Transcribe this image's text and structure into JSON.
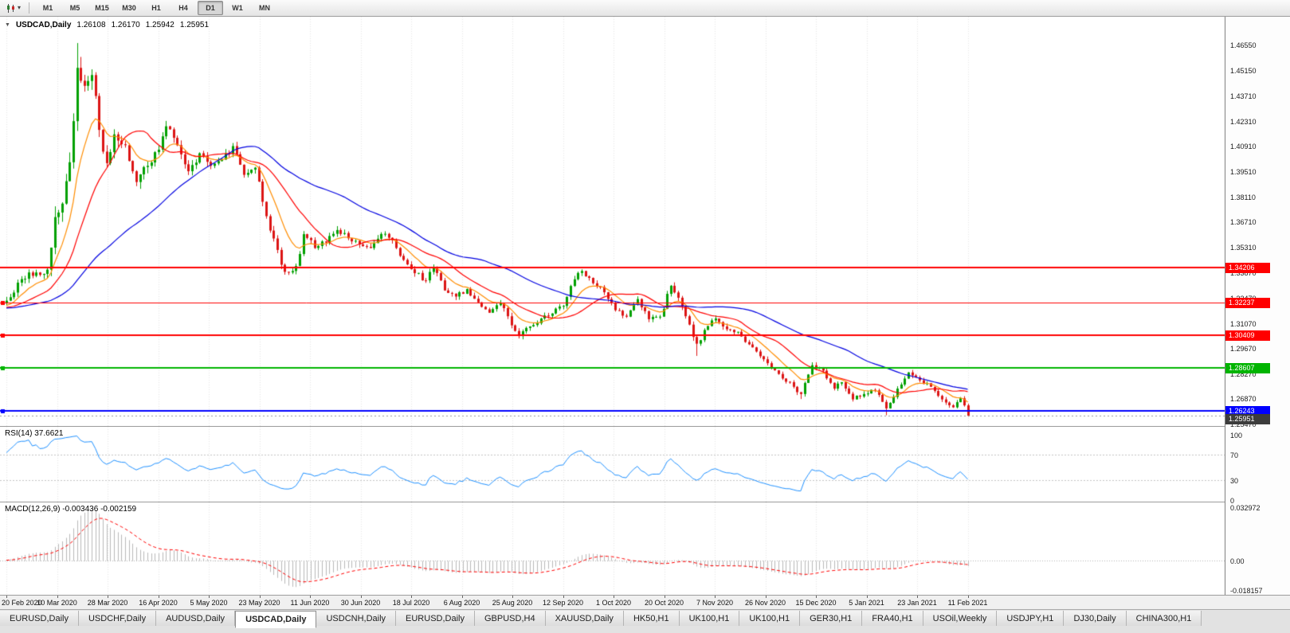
{
  "icons": {
    "collapse": "▼",
    "caret": "▾"
  },
  "toolbar": {
    "timeframes": [
      "M1",
      "M5",
      "M15",
      "M30",
      "H1",
      "H4",
      "D1",
      "W1",
      "MN"
    ],
    "active_timeframe": "D1"
  },
  "chart": {
    "symbol_header": "USDCAD,Daily",
    "ohlc": {
      "open": "1.26108",
      "high": "1.26170",
      "low": "1.25942",
      "close": "1.25951"
    }
  },
  "rsi": {
    "label": "RSI(14) 37.6621",
    "period": 14,
    "current": 37.6621,
    "color": "#1E90FF",
    "ticks": [
      {
        "label": "100",
        "v": 100
      },
      {
        "label": "70",
        "v": 70
      },
      {
        "label": "30",
        "v": 30
      },
      {
        "label": "0",
        "v": 0
      }
    ],
    "levels": [
      70,
      30
    ]
  },
  "macd": {
    "label": "MACD(12,26,9) -0.003436 -0.002159",
    "fast": 12,
    "slow": 26,
    "signal": 9,
    "values": [
      -0.003436,
      -0.002159
    ],
    "axis_max": 0.032972,
    "axis_min": -0.018157,
    "histogram_color": "#B8B8B8",
    "signal_color": "#FF0000",
    "ticks": [
      {
        "label": "0.032972",
        "v": 0.032972
      },
      {
        "label": "0.00",
        "v": 0
      },
      {
        "label": "-0.018157",
        "v": -0.018157
      }
    ]
  },
  "tabs": {
    "active_index": 3,
    "items": [
      "EURUSD,Daily",
      "USDCHF,Daily",
      "AUDUSD,Daily",
      "USDCAD,Daily",
      "USDCNH,Daily",
      "EURUSD,Daily",
      "GBPUSD,H4",
      "XAUUSD,Daily",
      "HK50,H1",
      "UK100,H1",
      "UK100,H1",
      "GER30,H1",
      "FRA40,H1",
      "USOil,Weekly",
      "USDJPY,H1",
      "DJ30,Daily",
      "CHINA300,H1"
    ]
  },
  "chart_data": {
    "type": "candlestick",
    "symbol": "USDCAD",
    "timeframe": "Daily",
    "bars": 260,
    "encoding": "anchors = [barIndex, estimatedClose, estimatedVolatility] keyframes read off the chart; bars between anchors are interpolated for rendering",
    "price_axis": {
      "max": 1.4655,
      "min": 1.2547
    },
    "price_ticks": [
      "1.46550",
      "1.45150",
      "1.43710",
      "1.42310",
      "1.40910",
      "1.39510",
      "1.38110",
      "1.36710",
      "1.35310",
      "1.33870",
      "1.32470",
      "1.31070",
      "1.29670",
      "1.28270",
      "1.26870",
      "1.25470"
    ],
    "date_ticks": [
      "20 Feb 2020",
      "10 Mar 2020",
      "28 Mar 2020",
      "16 Apr 2020",
      "5 May 2020",
      "23 May 2020",
      "11 Jun 2020",
      "30 Jun 2020",
      "18 Jul 2020",
      "6 Aug 2020",
      "25 Aug 2020",
      "12 Sep 2020",
      "1 Oct 2020",
      "20 Oct 2020",
      "7 Nov 2020",
      "26 Nov 2020",
      "15 Dec 2020",
      "5 Jan 2021",
      "23 Jan 2021",
      "11 Feb 2021"
    ],
    "colors": {
      "bull": "#00A000",
      "bear": "#DC1414",
      "background": "#FFFFFF",
      "grid": "#E6E6E6"
    },
    "levels": [
      {
        "label": "1.34206",
        "price": 1.34206,
        "color": "#FF0000",
        "width": 2,
        "handle": false
      },
      {
        "label": "1.32237",
        "price": 1.32237,
        "color": "#FF0000",
        "width": 1,
        "handle": true
      },
      {
        "label": "1.30409",
        "price": 1.30409,
        "color": "#FF0000",
        "width": 2,
        "handle": true
      },
      {
        "label": "1.28607",
        "price": 1.28607,
        "color": "#00B400",
        "width": 2,
        "handle": true
      },
      {
        "label": "1.26243",
        "price": 1.26243,
        "color": "#0000FF",
        "width": 2,
        "handle": true
      }
    ],
    "current_price": {
      "label": "1.25951",
      "price": 1.25951,
      "color": "#3C3C3C"
    },
    "moving_averages": [
      {
        "type": "ema",
        "period": 10,
        "color": "#FF8C00"
      },
      {
        "type": "sma",
        "period": 20,
        "color": "#FF0000"
      },
      {
        "type": "sma",
        "period": 50,
        "color": "#0000E0"
      }
    ],
    "anchors": [
      [
        0,
        1.3235,
        0.004
      ],
      [
        4,
        1.3355,
        0.0045
      ],
      [
        8,
        1.3392,
        0.005
      ],
      [
        11,
        1.3408,
        0.006
      ],
      [
        13,
        1.37,
        0.0095
      ],
      [
        15,
        1.3775,
        0.0105
      ],
      [
        17,
        1.4005,
        0.0115
      ],
      [
        19,
        1.453,
        0.013
      ],
      [
        21,
        1.443,
        0.012
      ],
      [
        23,
        1.449,
        0.011
      ],
      [
        25,
        1.4185,
        0.01
      ],
      [
        27,
        1.4,
        0.009
      ],
      [
        29,
        1.416,
        0.0085
      ],
      [
        32,
        1.41,
        0.008
      ],
      [
        35,
        1.3895,
        0.0075
      ],
      [
        38,
        1.3985,
        0.007
      ],
      [
        41,
        1.4075,
        0.0065
      ],
      [
        43,
        1.4205,
        0.0065
      ],
      [
        46,
        1.41,
        0.006
      ],
      [
        49,
        1.3955,
        0.0055
      ],
      [
        52,
        1.4055,
        0.0055
      ],
      [
        55,
        1.3985,
        0.005
      ],
      [
        58,
        1.402,
        0.005
      ],
      [
        61,
        1.4095,
        0.005
      ],
      [
        64,
        1.3935,
        0.0048
      ],
      [
        67,
        1.3975,
        0.0048
      ],
      [
        69,
        1.3785,
        0.0048
      ],
      [
        71,
        1.3625,
        0.005
      ],
      [
        74,
        1.3435,
        0.005
      ],
      [
        76,
        1.3392,
        0.005
      ],
      [
        78,
        1.3428,
        0.0055
      ],
      [
        80,
        1.3605,
        0.0055
      ],
      [
        83,
        1.3528,
        0.0048
      ],
      [
        86,
        1.3558,
        0.0042
      ],
      [
        89,
        1.3628,
        0.004
      ],
      [
        92,
        1.3582,
        0.004
      ],
      [
        95,
        1.3548,
        0.004
      ],
      [
        98,
        1.3528,
        0.004
      ],
      [
        101,
        1.3606,
        0.004
      ],
      [
        104,
        1.3572,
        0.004
      ],
      [
        107,
        1.3462,
        0.004
      ],
      [
        110,
        1.3388,
        0.004
      ],
      [
        113,
        1.3348,
        0.004
      ],
      [
        115,
        1.3415,
        0.004
      ],
      [
        118,
        1.3292,
        0.0038
      ],
      [
        121,
        1.3258,
        0.0036
      ],
      [
        124,
        1.33,
        0.0036
      ],
      [
        127,
        1.3226,
        0.0036
      ],
      [
        130,
        1.3168,
        0.0036
      ],
      [
        133,
        1.3222,
        0.0036
      ],
      [
        136,
        1.3098,
        0.0036
      ],
      [
        138,
        1.3038,
        0.0036
      ],
      [
        141,
        1.3092,
        0.0034
      ],
      [
        144,
        1.3136,
        0.0034
      ],
      [
        147,
        1.3164,
        0.0034
      ],
      [
        150,
        1.3206,
        0.0034
      ],
      [
        153,
        1.3354,
        0.0036
      ],
      [
        155,
        1.34,
        0.0036
      ],
      [
        158,
        1.3332,
        0.0034
      ],
      [
        161,
        1.3282,
        0.0034
      ],
      [
        164,
        1.3182,
        0.0034
      ],
      [
        167,
        1.3146,
        0.0034
      ],
      [
        170,
        1.3244,
        0.0034
      ],
      [
        173,
        1.3132,
        0.0034
      ],
      [
        176,
        1.3146,
        0.0034
      ],
      [
        179,
        1.3318,
        0.004
      ],
      [
        182,
        1.3202,
        0.004
      ],
      [
        184,
        1.3102,
        0.0042
      ],
      [
        186,
        1.2996,
        0.0046
      ],
      [
        188,
        1.3072,
        0.004
      ],
      [
        191,
        1.3136,
        0.0035
      ],
      [
        194,
        1.3076,
        0.0034
      ],
      [
        197,
        1.3062,
        0.0032
      ],
      [
        200,
        1.2992,
        0.0032
      ],
      [
        203,
        1.2926,
        0.003
      ],
      [
        206,
        1.2862,
        0.003
      ],
      [
        209,
        1.2802,
        0.003
      ],
      [
        212,
        1.2756,
        0.003
      ],
      [
        214,
        1.2716,
        0.003
      ],
      [
        217,
        1.2876,
        0.0034
      ],
      [
        220,
        1.2846,
        0.003
      ],
      [
        223,
        1.2746,
        0.003
      ],
      [
        225,
        1.2782,
        0.003
      ],
      [
        228,
        1.2686,
        0.003
      ],
      [
        231,
        1.2716,
        0.003
      ],
      [
        234,
        1.2736,
        0.003
      ],
      [
        237,
        1.2636,
        0.003
      ],
      [
        240,
        1.2746,
        0.003
      ],
      [
        243,
        1.2836,
        0.003
      ],
      [
        246,
        1.2792,
        0.003
      ],
      [
        249,
        1.2756,
        0.0028
      ],
      [
        252,
        1.2686,
        0.0028
      ],
      [
        255,
        1.2642,
        0.0026
      ],
      [
        257,
        1.2692,
        0.0026
      ],
      [
        259,
        1.25951,
        0.0024
      ]
    ],
    "spikes": [
      {
        "i": 13,
        "h": 1.376
      },
      {
        "i": 19,
        "h": 1.4668
      },
      {
        "i": 186,
        "l": 1.2928
      },
      {
        "i": 214,
        "l": 1.2688
      },
      {
        "i": 237,
        "l": 1.2598
      },
      {
        "i": 259,
        "l": 1.259
      }
    ]
  }
}
